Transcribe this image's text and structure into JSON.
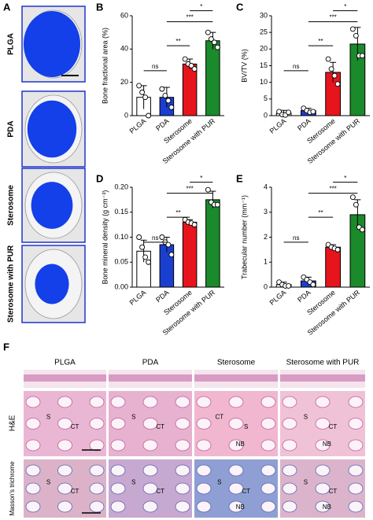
{
  "panel_a": {
    "label": "A",
    "rows": [
      "PLGA",
      "PDA",
      "Sterosome",
      "Sterosome with PUR"
    ]
  },
  "chart_data": [
    {
      "type": "bar",
      "panel": "B",
      "ylabel": "Bone fractional area (%)",
      "categories": [
        "PLGA",
        "PDA",
        "Sterosome",
        "Sterosome with PUR"
      ],
      "values": [
        11,
        11,
        31,
        45
      ],
      "errors": [
        7,
        6,
        3,
        5
      ],
      "points": [
        [
          18,
          14,
          11,
          0
        ],
        [
          16,
          12,
          9,
          5
        ],
        [
          34,
          31,
          30,
          28
        ],
        [
          50,
          46,
          44,
          41
        ]
      ],
      "colors": [
        "#ffffff",
        "#1a3fcf",
        "#e8141c",
        "#1a8a2a"
      ],
      "ylim": [
        0,
        60
      ],
      "yticks": [
        0,
        20,
        40,
        60
      ],
      "brackets": [
        {
          "between": [
            "PLGA",
            "PDA"
          ],
          "label": "ns"
        },
        {
          "between": [
            "PDA",
            "Sterosome"
          ],
          "label": "**"
        },
        {
          "between": [
            "PDA",
            "Sterosome with PUR"
          ],
          "label": "***"
        },
        {
          "between": [
            "Sterosome",
            "Sterosome with PUR"
          ],
          "label": "*"
        }
      ]
    },
    {
      "type": "bar",
      "panel": "C",
      "ylabel": "BV/TV (%)",
      "categories": [
        "PLGA",
        "PDA",
        "Sterosome",
        "Sterosome with PUR"
      ],
      "values": [
        0.7,
        1.5,
        13,
        21.5
      ],
      "errors": [
        0.9,
        0.7,
        3,
        5
      ],
      "points": [
        [
          1.2,
          0.3,
          0.2,
          1.0
        ],
        [
          2.2,
          1.5,
          1.0,
          1.2
        ],
        [
          17,
          14,
          12,
          9.5
        ],
        [
          26,
          24,
          18,
          18
        ]
      ],
      "colors": [
        "#ffffff",
        "#1a3fcf",
        "#e8141c",
        "#1a8a2a"
      ],
      "ylim": [
        0,
        30
      ],
      "yticks": [
        0,
        5,
        10,
        15,
        20,
        25,
        30
      ],
      "brackets": [
        {
          "between": [
            "PLGA",
            "PDA"
          ],
          "label": "ns"
        },
        {
          "between": [
            "PDA",
            "Sterosome"
          ],
          "label": "**"
        },
        {
          "between": [
            "PDA",
            "Sterosome with PUR"
          ],
          "label": "***"
        },
        {
          "between": [
            "Sterosome",
            "Sterosome with PUR"
          ],
          "label": "*"
        }
      ]
    },
    {
      "type": "bar",
      "panel": "D",
      "ylabel": "Bone mineral density (g cm⁻³)",
      "categories": [
        "PLGA",
        "PDA",
        "Sterosome",
        "Sterosome with PUR"
      ],
      "values": [
        0.072,
        0.085,
        0.13,
        0.175
      ],
      "errors": [
        0.022,
        0.015,
        0.005,
        0.017
      ],
      "points": [
        [
          0.1,
          0.08,
          0.06,
          0.05
        ],
        [
          0.1,
          0.09,
          0.085,
          0.065
        ],
        [
          0.135,
          0.13,
          0.128,
          0.125
        ],
        [
          0.195,
          0.17,
          0.165,
          0.165
        ]
      ],
      "colors": [
        "#ffffff",
        "#1a3fcf",
        "#e8141c",
        "#1a8a2a"
      ],
      "ylim": [
        0,
        0.2
      ],
      "yticks": [
        {
          "value": 0,
          "label": "0.00"
        },
        0.05,
        {
          "value": 0.1,
          "label": "0.10"
        },
        0.15,
        {
          "value": 0.2,
          "label": "0.20"
        }
      ],
      "brackets": [
        {
          "between": [
            "PLGA",
            "PDA"
          ],
          "label": "ns"
        },
        {
          "between": [
            "PDA",
            "Sterosome"
          ],
          "label": "**"
        },
        {
          "between": [
            "PDA",
            "Sterosome with PUR"
          ],
          "label": "***"
        },
        {
          "between": [
            "Sterosome",
            "Sterosome with PUR"
          ],
          "label": "*"
        }
      ]
    },
    {
      "type": "bar",
      "panel": "E",
      "ylabel": "Trabecular number (mm⁻¹)",
      "categories": [
        "PLGA",
        "PDA",
        "Sterosome",
        "Sterosome with PUR"
      ],
      "values": [
        0.1,
        0.25,
        1.6,
        2.9
      ],
      "errors": [
        0.1,
        0.15,
        0.1,
        0.6
      ],
      "points": [
        [
          0.2,
          0.1,
          0.05,
          0.05
        ],
        [
          0.4,
          0.3,
          0.2,
          0.1
        ],
        [
          1.7,
          1.6,
          1.55,
          1.5
        ],
        [
          3.6,
          3.3,
          2.4,
          2.3
        ]
      ],
      "colors": [
        "#ffffff",
        "#1a3fcf",
        "#e8141c",
        "#1a8a2a"
      ],
      "ylim": [
        0,
        4
      ],
      "yticks": [
        0,
        1,
        2,
        3,
        4
      ],
      "brackets": [
        {
          "between": [
            "PLGA",
            "PDA"
          ],
          "label": "ns"
        },
        {
          "between": [
            "PDA",
            "Sterosome"
          ],
          "label": "**"
        },
        {
          "between": [
            "PDA",
            "Sterosome with PUR"
          ],
          "label": "***"
        },
        {
          "between": [
            "Sterosome",
            "Sterosome with PUR"
          ],
          "label": "*"
        }
      ]
    }
  ],
  "panel_f": {
    "label": "F",
    "columns": [
      "PLGA",
      "PDA",
      "Sterosome",
      "Sterosome with PUR"
    ],
    "rows": [
      "H&E",
      "Masson's trichrome"
    ],
    "image_labels": [
      [
        [
          "S",
          "CT"
        ],
        [
          "S",
          "CT"
        ],
        [
          "CT",
          "S",
          "NB"
        ],
        [
          "S",
          "CT",
          "NB"
        ]
      ],
      [
        [
          "S",
          "CT"
        ],
        [
          "S",
          "CT"
        ],
        [
          "S",
          "CT",
          "NB"
        ],
        [
          "S",
          "CT",
          "NB"
        ]
      ]
    ]
  }
}
